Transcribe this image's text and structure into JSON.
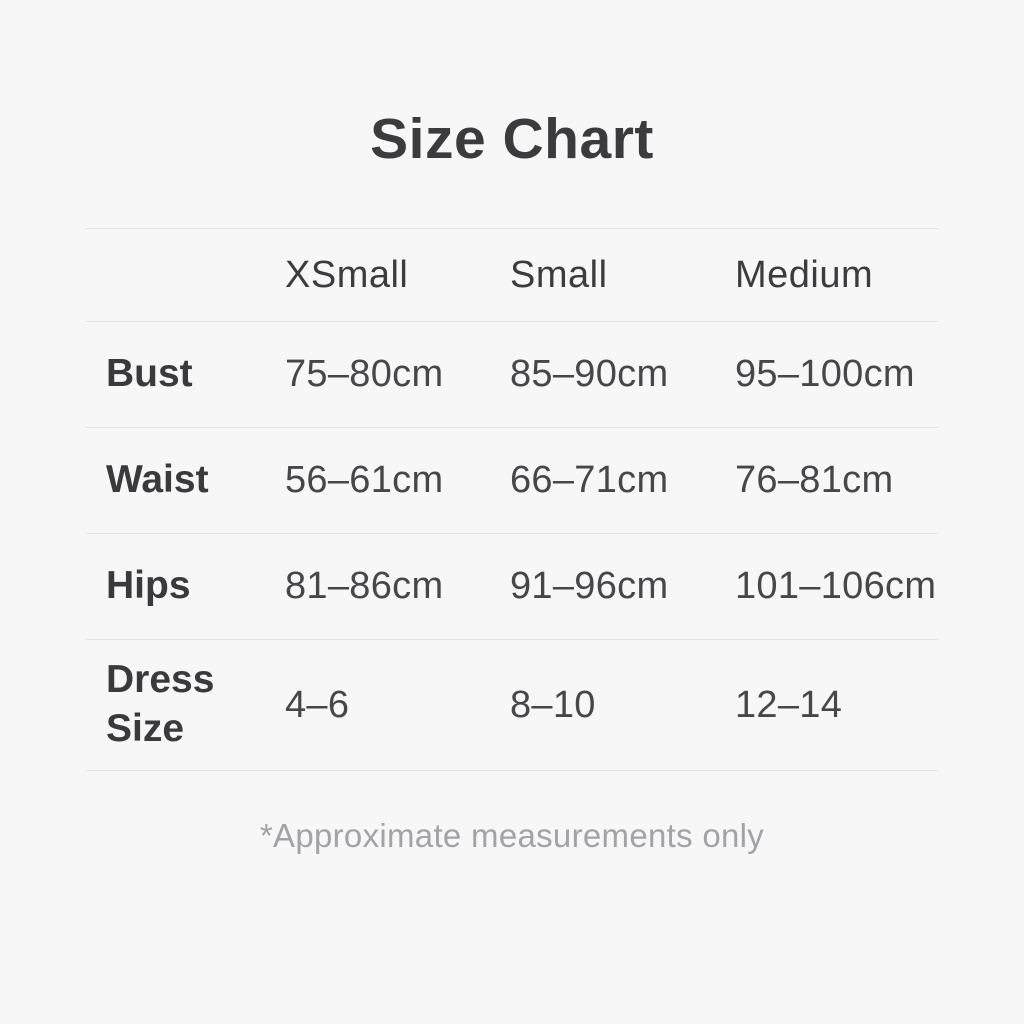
{
  "page": {
    "title": "Size Chart",
    "footnote": "*Approximate measurements only"
  },
  "chart_data": {
    "type": "table",
    "title": "Size Chart",
    "columns": [
      "XSmall",
      "Small",
      "Medium"
    ],
    "rows": [
      {
        "label": "Bust",
        "values": [
          "75–80cm",
          "85–90cm",
          "95–100cm"
        ]
      },
      {
        "label": "Waist",
        "values": [
          "56–61cm",
          "66–71cm",
          "76–81cm"
        ]
      },
      {
        "label": "Hips",
        "values": [
          "81–86cm",
          "91–96cm",
          "101–106cm"
        ]
      },
      {
        "label": "Dress Size",
        "values": [
          "4–6",
          "8–10",
          "12–14"
        ]
      }
    ],
    "footnote": "*Approximate measurements only"
  },
  "colors": {
    "background": "#f7f7f8",
    "heading_text": "#3b3b3d",
    "label_text": "#3a3a3c",
    "value_text": "#47474a",
    "divider": "#e3e3e6",
    "footnote_text": "#a3a3a7"
  }
}
